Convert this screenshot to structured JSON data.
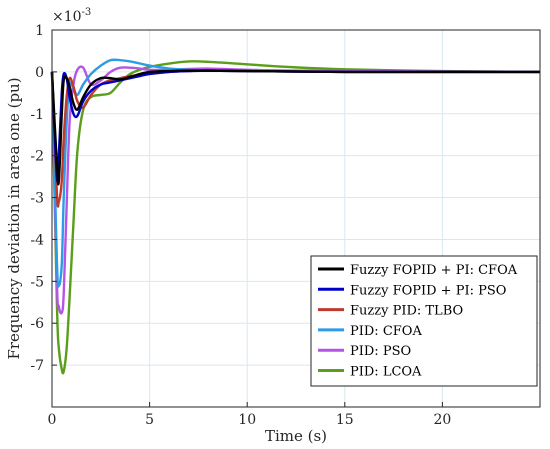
{
  "chart_data": {
    "type": "line",
    "xlabel": "Time (s)",
    "ylabel": "Frequency deviation in area one  (pu)",
    "exponent_label": "×10",
    "exponent_power": "-3",
    "xlim": [
      0,
      25
    ],
    "ylim": [
      -8,
      1
    ],
    "xticks": [
      0,
      5,
      10,
      15,
      20
    ],
    "yticks": [
      1,
      0,
      -1,
      -2,
      -3,
      -4,
      -5,
      -6,
      -7
    ],
    "grid": true,
    "legend_position": "bottom-right",
    "x": [
      0,
      0.25,
      0.35,
      0.5,
      0.6,
      0.75,
      0.9,
      1.1,
      1.3,
      1.6,
      2.0,
      2.5,
      3.0,
      3.5,
      4.0,
      4.5,
      5.0,
      6.0,
      7.0,
      8.0,
      10.0,
      12.0,
      15.0,
      20.0,
      25.0
    ],
    "series": [
      {
        "name": "Fuzzy FOPID + PI: CFOA",
        "color": "#000000",
        "values": [
          0,
          -2.2,
          -2.6,
          -1.0,
          -0.2,
          -0.15,
          -0.35,
          -0.75,
          -0.9,
          -0.6,
          -0.3,
          -0.15,
          -0.15,
          -0.18,
          -0.12,
          -0.05,
          0.0,
          0.02,
          0.03,
          0.03,
          0.02,
          0.01,
          0.0,
          0.0,
          0.0
        ]
      },
      {
        "name": "Fuzzy FOPID + PI: PSO",
        "color": "#0000c8",
        "values": [
          0,
          -2.5,
          -2.0,
          -0.5,
          -0.05,
          -0.15,
          -0.6,
          -1.0,
          -1.05,
          -0.7,
          -0.45,
          -0.3,
          -0.25,
          -0.2,
          -0.15,
          -0.1,
          -0.05,
          0.0,
          0.02,
          0.03,
          0.02,
          0.01,
          0.0,
          0.0,
          0.0
        ]
      },
      {
        "name": "Fuzzy PID: TLBO",
        "color": "#c0392b",
        "values": [
          0,
          -2.9,
          -3.1,
          -2.6,
          -1.6,
          -0.6,
          -0.15,
          -0.35,
          -0.7,
          -0.85,
          -0.55,
          -0.3,
          -0.2,
          -0.15,
          -0.1,
          -0.08,
          -0.05,
          0.0,
          0.02,
          0.03,
          0.02,
          0.01,
          0.0,
          0.0,
          0.0
        ]
      },
      {
        "name": "PID: CFOA",
        "color": "#2e9be6",
        "values": [
          0,
          -4.5,
          -5.1,
          -4.6,
          -3.0,
          -1.2,
          -0.3,
          -0.4,
          -0.55,
          -0.3,
          -0.05,
          0.15,
          0.28,
          0.28,
          0.25,
          0.2,
          0.15,
          0.08,
          0.05,
          0.03,
          0.02,
          0.01,
          0.0,
          0.0,
          0.0
        ]
      },
      {
        "name": "PID: PSO",
        "color": "#b455e6",
        "values": [
          0,
          -5.0,
          -5.6,
          -5.75,
          -5.3,
          -3.2,
          -1.2,
          -0.3,
          0.05,
          0.1,
          -0.3,
          -0.2,
          0.0,
          0.1,
          0.1,
          0.08,
          0.05,
          0.05,
          0.07,
          0.08,
          0.05,
          0.03,
          0.02,
          0.01,
          0.0
        ]
      },
      {
        "name": "PID: LCOA",
        "color": "#5a9e1a",
        "values": [
          0,
          -5.5,
          -6.6,
          -7.1,
          -7.15,
          -6.6,
          -5.4,
          -3.6,
          -1.9,
          -0.9,
          -0.6,
          -0.55,
          -0.5,
          -0.25,
          -0.05,
          0.05,
          0.12,
          0.2,
          0.25,
          0.24,
          0.18,
          0.12,
          0.06,
          0.02,
          0.0
        ]
      }
    ]
  }
}
